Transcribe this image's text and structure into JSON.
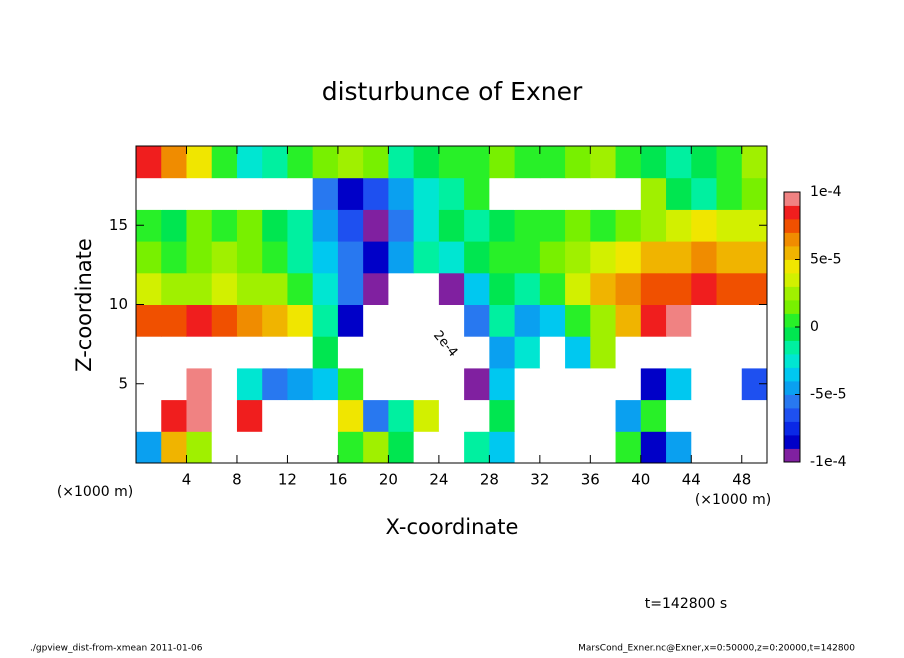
{
  "chart_data": {
    "type": "heatmap",
    "title": "disturbunce of Exner",
    "xlabel": "X-coordinate",
    "ylabel": "Z-coordinate",
    "xunit": "(×1000 m)",
    "yunit": "(×1000 m)",
    "xlim": [
      0,
      50
    ],
    "ylim": [
      0,
      20
    ],
    "xticks": [
      4,
      8,
      12,
      16,
      20,
      24,
      28,
      32,
      36,
      40,
      44,
      48
    ],
    "yticks": [
      5,
      10,
      15
    ],
    "annotation": "2e-4",
    "time_label": "t=142800 s",
    "footer_left": "./gpview_dist-from-xmean  2011-01-06",
    "footer_right": "MarsCond_Exner.nc@Exner,x=0:50000,z=0:20000,t=142800",
    "clim": [
      -0.0001,
      0.0001
    ],
    "cbar_ticks": [
      {
        "value": 0.0001,
        "label": "1e-4"
      },
      {
        "value": 5e-05,
        "label": "5e-5"
      },
      0,
      {
        "value": -5e-05,
        "label": "-5e-5"
      },
      {
        "value": -0.0001,
        "label": "-1e-4"
      }
    ],
    "colormap": [
      "#8020a0",
      "#0000c8",
      "#0a28e6",
      "#1e50f0",
      "#2878f0",
      "#0aa0f0",
      "#00c8f0",
      "#00e6d2",
      "#00f0a0",
      "#00e650",
      "#28f028",
      "#78f000",
      "#a0f000",
      "#d2f000",
      "#f0e600",
      "#f0b400",
      "#f08c00",
      "#f05000",
      "#f01e1e",
      "#f08282"
    ],
    "z": [
      [
        -5e-05,
        5e-05,
        2e-05,
        0.0002,
        0.0002,
        0.0002,
        0.0002,
        0.0002,
        0,
        2e-05,
        -1e-05,
        0.0002,
        0.0002,
        -2e-05,
        -4e-05,
        0.0002,
        0.0002,
        0.0002,
        0.0002,
        0,
        -8e-05,
        -5e-05,
        0.0002,
        0.0002,
        0.0002
      ],
      [
        0.0002,
        8e-05,
        9e-05,
        0.0002,
        8e-05,
        0.0002,
        0.0002,
        0.0002,
        4e-05,
        -6e-05,
        -2e-05,
        3e-05,
        0.0002,
        0.0002,
        -1e-05,
        0.0002,
        0.0002,
        0.0002,
        0.0002,
        -5e-05,
        0,
        0.0002,
        0.0002,
        0.0002,
        0.0002
      ],
      [
        0.0002,
        0.0002,
        9e-05,
        0.0002,
        -3e-05,
        -6e-05,
        -5e-05,
        -4e-05,
        0,
        0.0002,
        0.0002,
        0.0002,
        0.0002,
        -9e-05,
        -4e-05,
        0.0002,
        0.0002,
        0.0002,
        0.0002,
        0.0002,
        -8e-05,
        -4e-05,
        0.0002,
        0.0002,
        -7e-05
      ],
      [
        0.0002,
        0.0002,
        0.0002,
        0.0002,
        0.0002,
        0.0002,
        0.0002,
        -1e-05,
        0.0002,
        0.0002,
        0.0002,
        0.0002,
        0.0002,
        0.0002,
        -5e-05,
        -3e-05,
        0.0002,
        -4e-05,
        2e-05,
        0.0002,
        0.0002,
        0.0002,
        0.0002,
        0.0002,
        0.0002
      ],
      [
        7e-05,
        7e-05,
        8e-05,
        7e-05,
        6e-05,
        5e-05,
        4e-05,
        -2e-05,
        -8e-05,
        0.0002,
        0.0002,
        0.0002,
        0.0002,
        -6e-05,
        -2e-05,
        -5e-05,
        -4e-05,
        0,
        2e-05,
        5e-05,
        8e-05,
        9e-05,
        0.0002,
        0.0002,
        0.0002
      ],
      [
        3e-05,
        2e-05,
        2e-05,
        3e-05,
        2e-05,
        2e-05,
        0,
        -3e-05,
        -6e-05,
        -9e-05,
        0.0002,
        0.0002,
        -9e-05,
        -4e-05,
        -1e-05,
        -2e-05,
        0,
        3e-05,
        5e-05,
        6e-05,
        7e-05,
        7e-05,
        8e-05,
        7e-05,
        7e-05
      ],
      [
        1e-05,
        0,
        1e-05,
        2e-05,
        1e-05,
        0,
        -2e-05,
        -4e-05,
        -6e-05,
        -8e-05,
        -5e-05,
        -2e-05,
        -3e-05,
        -1e-05,
        0,
        0,
        1e-05,
        2e-05,
        3e-05,
        4e-05,
        5e-05,
        5e-05,
        6e-05,
        5e-05,
        5e-05
      ],
      [
        0,
        -1e-05,
        1e-05,
        0,
        1e-05,
        -1e-05,
        -2e-05,
        -5e-05,
        -7e-05,
        -9e-05,
        -6e-05,
        -3e-05,
        -1e-05,
        -2e-05,
        -1e-05,
        0,
        0,
        1e-05,
        0,
        1e-05,
        2e-05,
        3e-05,
        4e-05,
        3e-05,
        3e-05
      ],
      [
        0.0002,
        0.0002,
        0.0002,
        0.0002,
        0.0002,
        0.0002,
        0.0002,
        -6e-05,
        -8e-05,
        -7e-05,
        -5e-05,
        -3e-05,
        -2e-05,
        0,
        0.0002,
        0.0002,
        0.0002,
        0.0002,
        0.0002,
        0.0002,
        2e-05,
        -1e-05,
        -2e-05,
        0,
        1e-05
      ],
      [
        8e-05,
        6e-05,
        4e-05,
        0,
        -3e-05,
        -2e-05,
        0,
        1e-05,
        2e-05,
        1e-05,
        -2e-05,
        -1e-05,
        0,
        0,
        1e-05,
        0,
        0,
        1e-05,
        2e-05,
        0,
        -1e-05,
        -2e-05,
        -1e-05,
        0,
        2e-05
      ]
    ]
  }
}
